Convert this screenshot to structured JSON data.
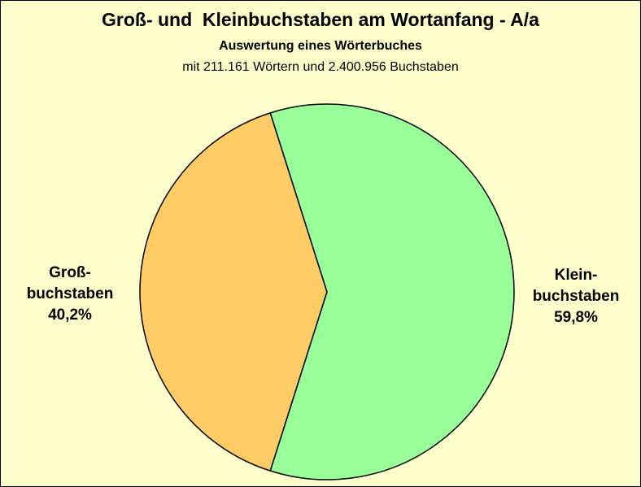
{
  "background_color": "#ffffcc",
  "title": "Groß- und  Kleinbuchstaben am Wortanfang - A/a",
  "subtitle": "Auswertung eines Wörterbuches",
  "subtitle2": "mit 211.161 Wörtern und 2.400.956 Buchstaben",
  "chart_data": {
    "type": "pie",
    "title": "Groß- und  Kleinbuchstaben am Wortanfang - A/a",
    "slices": [
      {
        "label_lines": [
          "Groß-",
          "buchstaben"
        ],
        "value": 40.2,
        "value_label": "40,2%",
        "color": "#ffcc66"
      },
      {
        "label_lines": [
          "Klein-",
          "buchstaben"
        ],
        "value": 59.8,
        "value_label": "59,8%",
        "color": "#99ff99"
      }
    ]
  }
}
